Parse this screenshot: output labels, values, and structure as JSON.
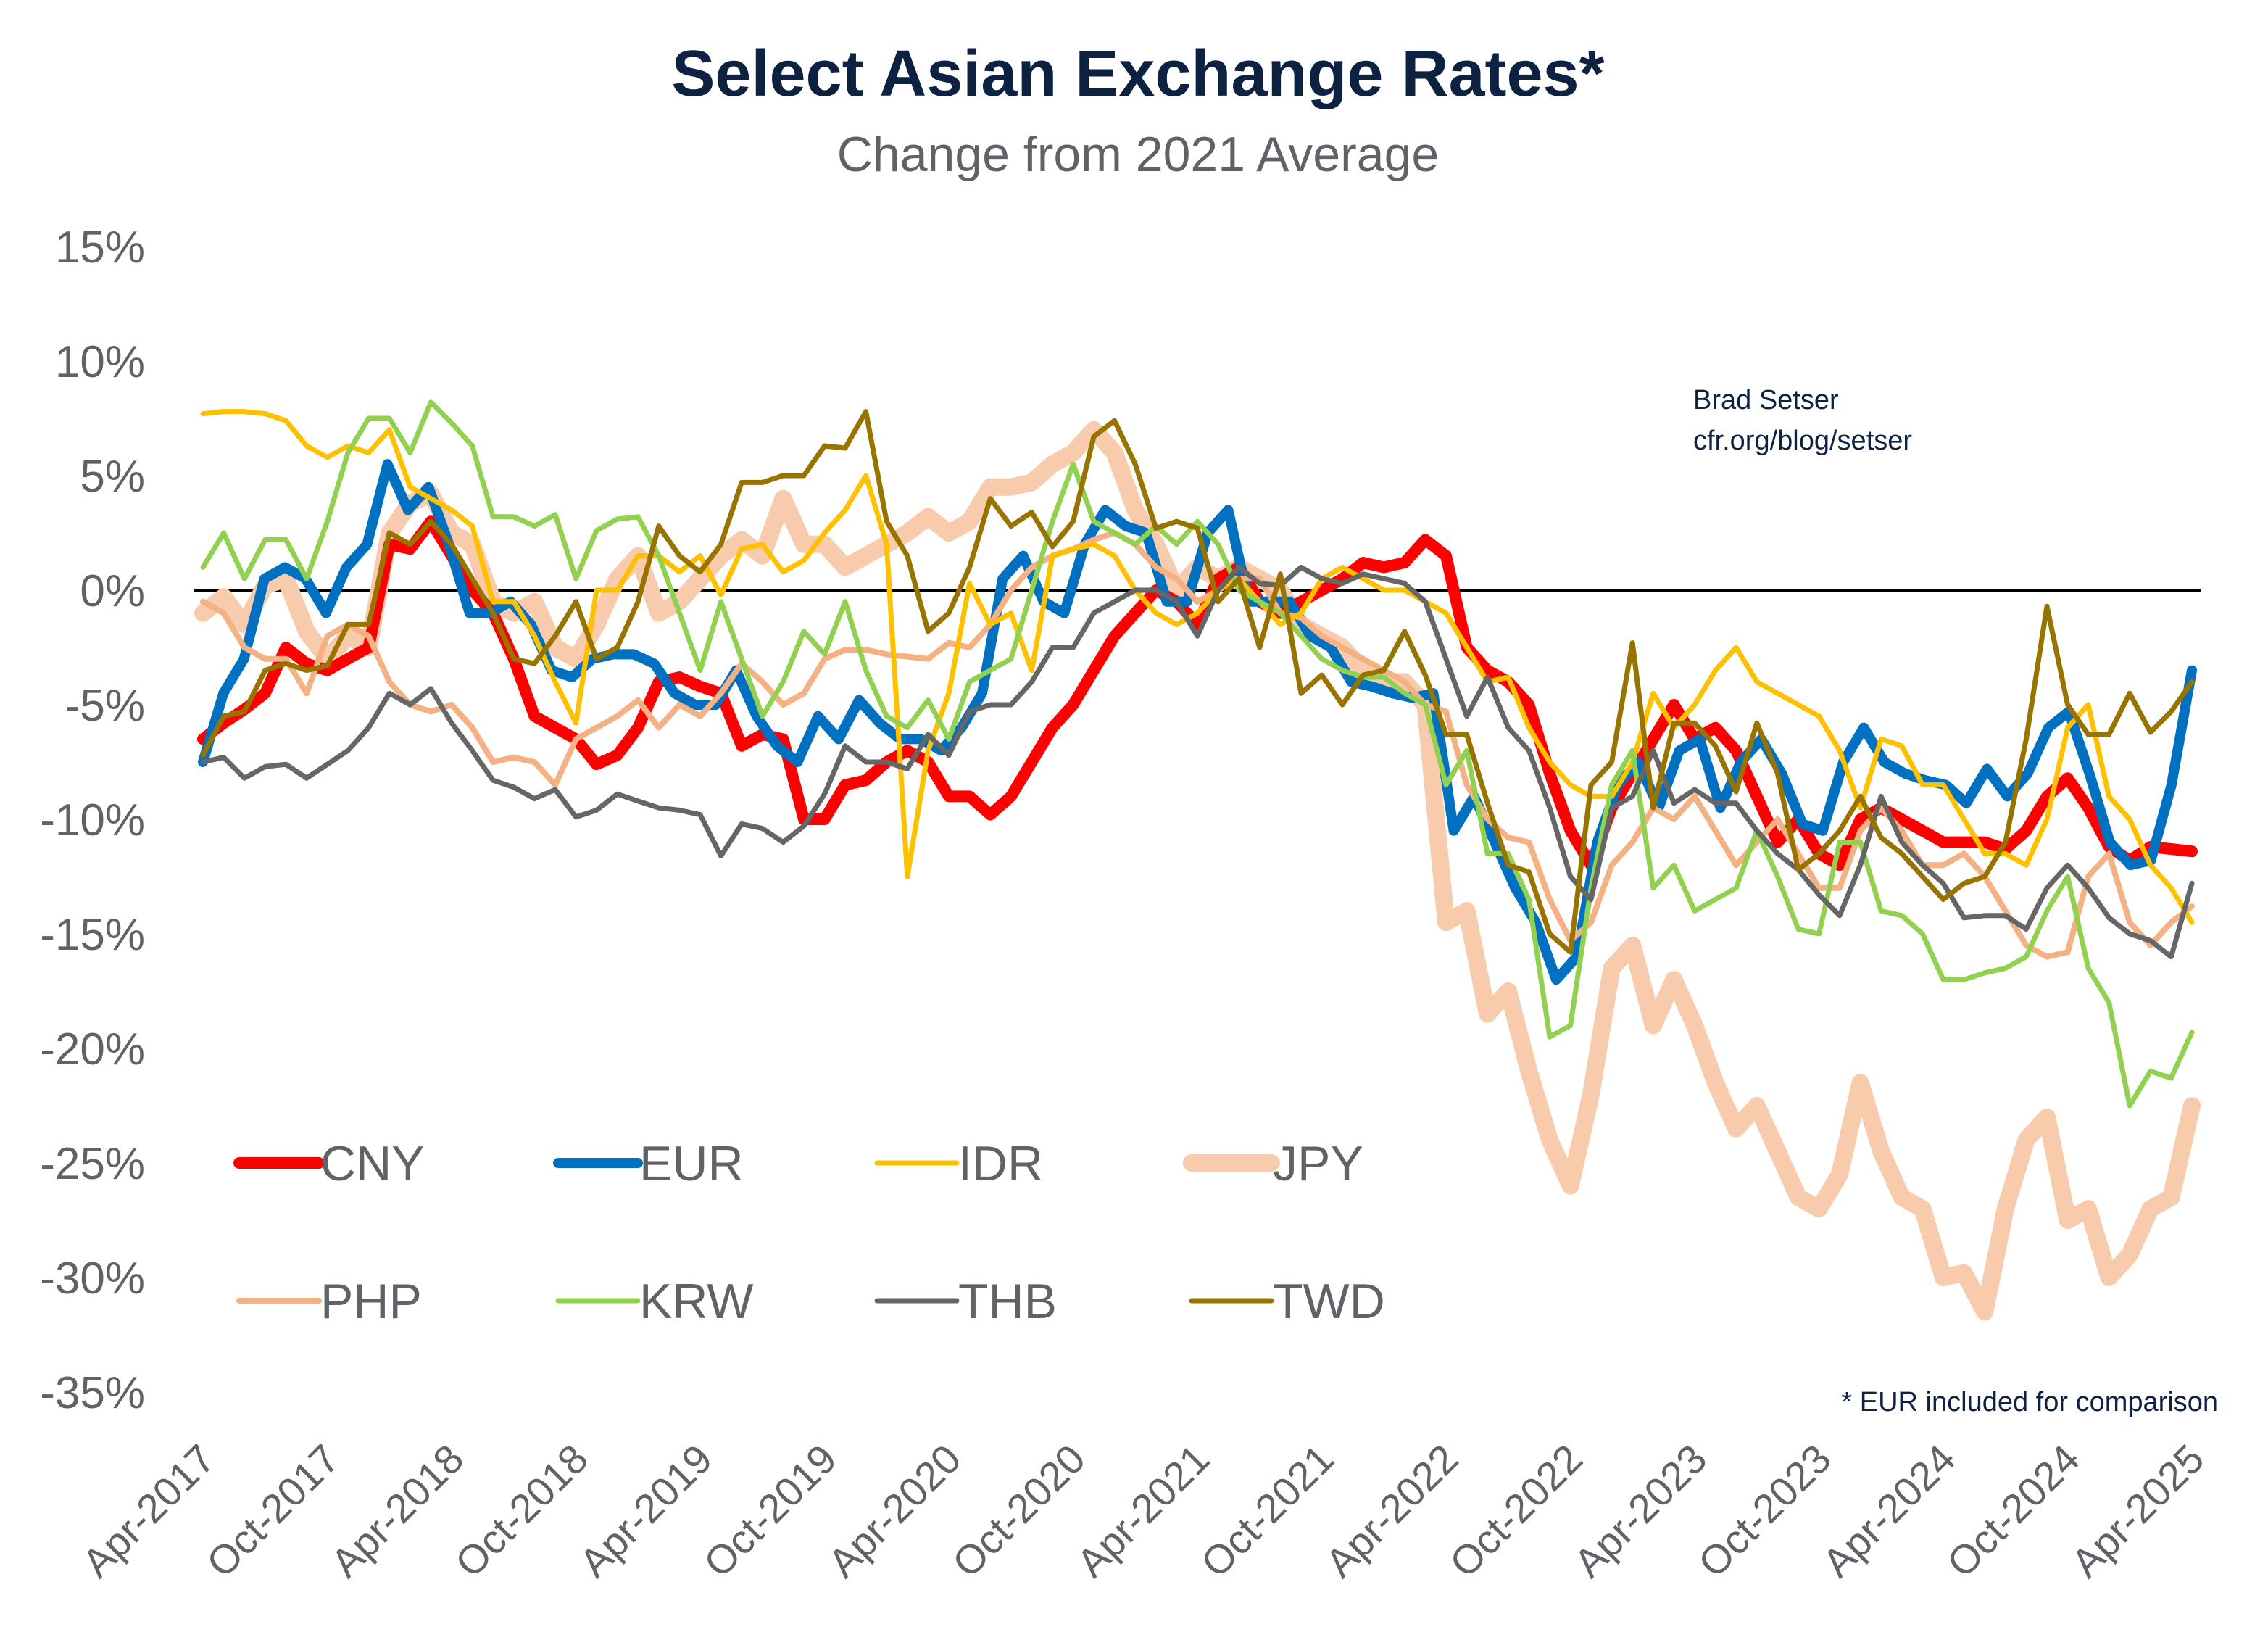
{
  "chart_data": {
    "type": "line",
    "title": "Select Asian Exchange Rates*",
    "subtitle": "Change from 2021 Average",
    "ylabel": "",
    "xlabel": "",
    "ylim": [
      -35,
      15
    ],
    "yticks": [
      "15%",
      "10%",
      "5%",
      "0%",
      "-5%",
      "-10%",
      "-15%",
      "-20%",
      "-25%",
      "-30%",
      "-35%"
    ],
    "ytick_values": [
      15,
      10,
      5,
      0,
      -5,
      -10,
      -15,
      -20,
      -25,
      -30,
      -35
    ],
    "xticks": [
      "Apr-2017",
      "Oct-2017",
      "Apr-2018",
      "Oct-2018",
      "Apr-2019",
      "Oct-2019",
      "Apr-2020",
      "Oct-2020",
      "Apr-2021",
      "Oct-2021",
      "Apr-2022",
      "Oct-2022",
      "Apr-2023",
      "Oct-2023",
      "Apr-2024",
      "Oct-2024",
      "Apr-2025"
    ],
    "x_range": [
      "Apr-2017",
      "Apr-2025"
    ],
    "frequency": "monthly",
    "grid": false,
    "zero_line": true,
    "legend_placement": "bottom-left",
    "annotation": [
      "Brad Setser",
      "cfr.org/blog/setser"
    ],
    "footnote": "* EUR included for comparison",
    "series": [
      {
        "name": "JPY",
        "color": "#f7cbac",
        "values": [
          -1,
          -0.3,
          -1.5,
          0.2,
          0.5,
          -1.8,
          -3,
          -2,
          -2.5,
          2.5,
          3.8,
          4.2,
          2.5,
          2,
          -0.5,
          -1,
          -0.5,
          -2.5,
          -3,
          -1.5,
          0.5,
          1.5,
          -1,
          -0.5,
          0.5,
          1.5,
          2.2,
          1.5,
          4,
          2,
          2,
          1,
          1.5,
          2,
          2.5,
          3.2,
          2.5,
          3,
          4.5,
          4.5,
          4.7,
          5.5,
          6,
          7,
          6,
          3.5,
          2,
          0,
          1,
          0.5,
          1,
          0.5,
          0,
          -1.5,
          -2,
          -2.5,
          -3.5,
          -4,
          -4,
          -5,
          -14.5,
          -14,
          -18.5,
          -17.5,
          -21,
          -24,
          -26,
          -22,
          -16.5,
          -15.5,
          -19,
          -17,
          -19,
          -21.5,
          -23.5,
          -22.5,
          -24.5,
          -26.5,
          -27,
          -25.5,
          -21.5,
          -24.5,
          -26.5,
          -27,
          -30,
          -29.8,
          -31.5,
          -27,
          -24,
          -23,
          -27.5,
          -27,
          -30,
          -29,
          -27,
          -26.5,
          -22.5
        ]
      },
      {
        "name": "CNY",
        "color": "#ff0000",
        "values": [
          -6.5,
          -5.8,
          -5.2,
          -4.5,
          -2.5,
          -3.2,
          -3.5,
          -3,
          -2.5,
          2,
          1.8,
          3,
          1.5,
          0,
          -1,
          -3,
          -5.5,
          -6,
          -6.5,
          -7.6,
          -7.2,
          -6,
          -4,
          -3.8,
          -4.2,
          -4.5,
          -6.8,
          -6.3,
          -6.5,
          -10,
          -10,
          -8.5,
          -8.3,
          -7.5,
          -7,
          -7.5,
          -9,
          -9,
          -9.8,
          -9,
          -7.5,
          -6,
          -5,
          -3.5,
          -2,
          -1,
          0,
          -0.5,
          -1.5,
          0.5,
          1,
          -0.5,
          -1,
          -0.5,
          0,
          0.5,
          1.2,
          1,
          1.2,
          2.2,
          1.5,
          -2.5,
          -3.5,
          -4,
          -5,
          -8,
          -10.5,
          -12,
          -9.5,
          -8,
          -6.5,
          -5,
          -6.5,
          -6,
          -7,
          -9,
          -11,
          -10,
          -11.5,
          -12,
          -10,
          -9.5,
          -10,
          -10.5,
          -11,
          -11,
          -11,
          -11.3,
          -10.5,
          -9,
          -8.2,
          -9.5,
          -11.2,
          -11.8,
          -11.2,
          -11.3,
          -11.4
        ]
      },
      {
        "name": "EUR",
        "color": "#0070c0",
        "values": [
          -7.5,
          -4.5,
          -3,
          0.5,
          1,
          0.5,
          -1,
          1,
          2,
          5.5,
          3.5,
          4.5,
          2,
          -1,
          -1,
          -0.5,
          -1.5,
          -3.5,
          -3.8,
          -3,
          -2.8,
          -2.8,
          -3.2,
          -4.5,
          -5,
          -5,
          -3.5,
          -5.5,
          -6.8,
          -7.5,
          -5.5,
          -6.5,
          -4.8,
          -5.8,
          -6.5,
          -6.5,
          -7,
          -6,
          -4.5,
          0.5,
          1.5,
          -0.5,
          -1,
          2,
          3.5,
          2.8,
          2.5,
          -0.5,
          -0.5,
          2.5,
          3.5,
          -0.5,
          -0.5,
          -0.5,
          -2,
          -2.5,
          -4,
          -4.2,
          -4.5,
          -4.7,
          -4.5,
          -10.5,
          -9,
          -11,
          -13,
          -14.5,
          -17,
          -16,
          -11,
          -8.5,
          -7.5,
          -9.5,
          -7,
          -6.5,
          -9.5,
          -7.5,
          -6.5,
          -8,
          -10.2,
          -10.5,
          -7.5,
          -6,
          -7.5,
          -8,
          -8.3,
          -8.5,
          -9.3,
          -7.8,
          -9,
          -8,
          -6,
          -5.3,
          -8,
          -11,
          -12,
          -11.8,
          -8.5,
          -3.5
        ]
      },
      {
        "name": "PHP",
        "color": "#f4b183",
        "values": [
          -0.5,
          -1,
          -2.5,
          -3,
          -3,
          -4.5,
          -2,
          -1.5,
          -2,
          -4,
          -5,
          -5.3,
          -5,
          -6,
          -7.5,
          -7.3,
          -7.5,
          -8.5,
          -6.5,
          -6,
          -5.5,
          -4.8,
          -6,
          -5,
          -5.5,
          -4.5,
          -3.2,
          -4,
          -5,
          -4.5,
          -3,
          -2.6,
          -2.6,
          -2.8,
          -2.9,
          -3,
          -2.3,
          -2.5,
          -1.5,
          0,
          1,
          1.5,
          1.8,
          2.2,
          2.5,
          2,
          1,
          0.5,
          -0.5,
          0,
          0.5,
          0.5,
          -1,
          -1.2,
          -2,
          -2.5,
          -3,
          -3.5,
          -4,
          -5,
          -5.3,
          -8.5,
          -10,
          -10.8,
          -11,
          -13.5,
          -15.3,
          -14.5,
          -12,
          -11,
          -9.5,
          -10,
          -9,
          -10.5,
          -12,
          -11,
          -10,
          -11.5,
          -13,
          -13,
          -10.5,
          -9.5,
          -10.5,
          -12,
          -12,
          -11.5,
          -12.5,
          -14,
          -15.5,
          -16,
          -15.8,
          -12.5,
          -11.5,
          -14.5,
          -15.5,
          -14.5,
          -13.8
        ]
      },
      {
        "name": "IDR",
        "color": "#ffc000",
        "values": [
          7.7,
          7.8,
          7.8,
          7.7,
          7.4,
          6.3,
          5.8,
          6.3,
          6,
          7,
          4.5,
          4,
          3.5,
          2.8,
          -0.5,
          -0.5,
          -2,
          -4,
          -5.8,
          0,
          0,
          1.5,
          1.5,
          0.8,
          1.5,
          -0.2,
          1.8,
          2,
          0.8,
          1.3,
          2.5,
          3.5,
          5,
          2,
          -12.5,
          -7,
          -4.5,
          0.3,
          -1.5,
          -1,
          -3.5,
          1.5,
          1.8,
          2,
          1.5,
          0,
          -1,
          -1.5,
          -1,
          0,
          0.5,
          -0.5,
          -1.5,
          -1,
          0.5,
          1,
          0.5,
          0,
          0,
          -0.5,
          -1,
          -2.5,
          -4,
          -3.8,
          -6,
          -7.5,
          -8.5,
          -9,
          -9,
          -7.5,
          -4.5,
          -6,
          -5,
          -3.5,
          -2.5,
          -4,
          -4.5,
          -5,
          -5.5,
          -7,
          -9.5,
          -6.5,
          -6.8,
          -8.5,
          -8.5,
          -10,
          -11.5,
          -11.5,
          -12,
          -10,
          -6,
          -5,
          -9,
          -10,
          -12,
          -13,
          -14.5
        ]
      },
      {
        "name": "KRW",
        "color": "#92d050",
        "values": [
          1,
          2.5,
          0.5,
          2.2,
          2.2,
          0.5,
          3,
          6,
          7.5,
          7.5,
          6,
          8.2,
          7.3,
          6.3,
          3.2,
          3.2,
          2.8,
          3.3,
          0.5,
          2.6,
          3.1,
          3.2,
          1.5,
          -1,
          -3.5,
          -0.5,
          -3,
          -5.5,
          -4,
          -1.8,
          -2.8,
          -0.5,
          -3.5,
          -5.5,
          -6,
          -4.8,
          -6.5,
          -4,
          -3.5,
          -3,
          0,
          3,
          5.5,
          3,
          2.5,
          2,
          2.8,
          2,
          3,
          2,
          0,
          -0.5,
          -1,
          -2,
          -3,
          -3.5,
          -3.8,
          -3.8,
          -4.5,
          -5,
          -8.5,
          -7,
          -11.5,
          -11.5,
          -13.5,
          -19.5,
          -19,
          -13,
          -8.5,
          -7,
          -13,
          -12,
          -14,
          -13.5,
          -13,
          -10.5,
          -12.5,
          -14.8,
          -15,
          -11,
          -11,
          -14,
          -14.2,
          -15,
          -17,
          -17,
          -16.7,
          -16.5,
          -16,
          -14,
          -12.5,
          -16.5,
          -18,
          -22.5,
          -21,
          -21.3,
          -19.3
        ]
      },
      {
        "name": "THB",
        "color": "#666666",
        "values": [
          -7.5,
          -7.3,
          -8.2,
          -7.7,
          -7.6,
          -8.2,
          -7.6,
          -7,
          -6,
          -4.5,
          -5,
          -4.3,
          -5.8,
          -7,
          -8.3,
          -8.6,
          -9.1,
          -8.7,
          -9.9,
          -9.6,
          -8.9,
          -9.2,
          -9.5,
          -9.6,
          -9.8,
          -11.6,
          -10.2,
          -10.4,
          -11,
          -10.3,
          -8.9,
          -6.8,
          -7.5,
          -7.5,
          -7.8,
          -6.3,
          -7.2,
          -5.3,
          -5,
          -5,
          -4,
          -2.5,
          -2.5,
          -1,
          -0.5,
          0,
          0,
          -0.5,
          -2,
          0,
          1,
          0.3,
          0.2,
          1,
          0.5,
          0.3,
          0.7,
          0.5,
          0.3,
          -0.5,
          -3,
          -5.5,
          -3.8,
          -6,
          -7,
          -9.5,
          -12.5,
          -13.5,
          -9.5,
          -9,
          -7,
          -9.3,
          -8.7,
          -9.3,
          -9.3,
          -10.5,
          -11.5,
          -12.2,
          -13.3,
          -14.2,
          -12,
          -9,
          -11,
          -12,
          -12.8,
          -14.3,
          -14.2,
          -14.2,
          -14.8,
          -13,
          -12,
          -13,
          -14.3,
          -15,
          -15.3,
          -16,
          -12.8
        ]
      },
      {
        "name": "TWD",
        "color": "#997300",
        "values": [
          -7.2,
          -5.5,
          -5.3,
          -3.5,
          -3.2,
          -3.5,
          -3.3,
          -1.5,
          -1.5,
          2.5,
          2,
          3,
          2,
          0.5,
          -1,
          -3,
          -3.2,
          -2,
          -0.5,
          -3,
          -2.5,
          -0.5,
          2.8,
          1.5,
          0.8,
          2,
          4.7,
          4.7,
          5,
          5,
          6.3,
          6.2,
          7.8,
          3,
          1.5,
          -1.8,
          -1,
          1,
          4,
          2.8,
          3.4,
          1.9,
          3,
          6.7,
          7.4,
          5.5,
          2.7,
          3,
          2.7,
          -0.5,
          0.5,
          -2.5,
          0.7,
          -4.5,
          -3.7,
          -5,
          -3.7,
          -3.5,
          -1.8,
          -3.7,
          -6.3,
          -6.3,
          -9.3,
          -12,
          -12.3,
          -15,
          -15.8,
          -8.5,
          -7.5,
          -2.3,
          -9.5,
          -5.8,
          -5.8,
          -6.8,
          -8.8,
          -5.8,
          -8,
          -12.2,
          -11.5,
          -10.5,
          -9,
          -10.8,
          -11.5,
          -12.5,
          -13.5,
          -12.8,
          -12.5,
          -11,
          -6.5,
          -0.7,
          -5,
          -6.3,
          -6.3,
          -4.5,
          -6.2,
          -5.3,
          -4
        ]
      }
    ],
    "legend": [
      {
        "name": "CNY",
        "color": "#ff0000"
      },
      {
        "name": "EUR",
        "color": "#0070c0"
      },
      {
        "name": "IDR",
        "color": "#ffc000"
      },
      {
        "name": "JPY",
        "color": "#f7cbac"
      },
      {
        "name": "PHP",
        "color": "#f4b183"
      },
      {
        "name": "KRW",
        "color": "#92d050"
      },
      {
        "name": "THB",
        "color": "#666666"
      },
      {
        "name": "TWD",
        "color": "#997300"
      }
    ]
  }
}
